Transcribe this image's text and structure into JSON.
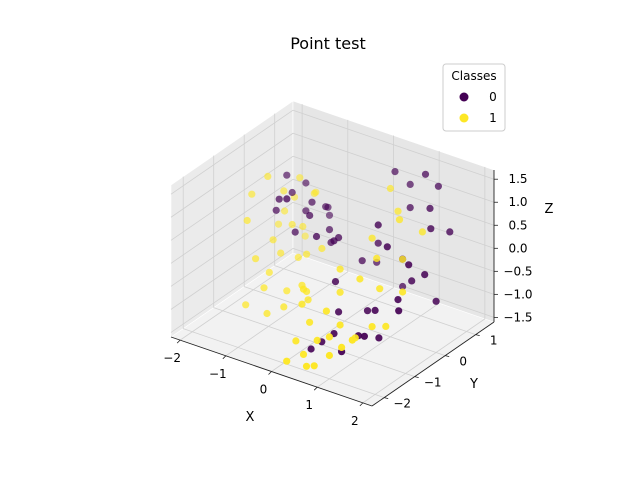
{
  "chart_data": {
    "type": "scatter",
    "projection": "3d",
    "title": "Point test",
    "xlabel": "X",
    "ylabel": "Y",
    "zlabel": "Z",
    "x_ticks": [
      -2,
      -1,
      0,
      1,
      2
    ],
    "y_ticks": [
      -2,
      -1,
      0,
      1
    ],
    "z_ticks": [
      -1.5,
      -1.0,
      -0.5,
      0.0,
      0.5,
      1.0,
      1.5
    ],
    "xlim": [
      -2.2,
      2.2
    ],
    "ylim": [
      -2.4,
      1.6
    ],
    "zlim": [
      -1.6,
      1.7
    ],
    "grid": true,
    "legend": {
      "title": "Classes",
      "placement": "top-right",
      "entries": [
        {
          "label": "0",
          "color": "#440154"
        },
        {
          "label": "1",
          "color": "#fde725"
        }
      ]
    },
    "series": [
      {
        "name": "0",
        "color": "#440154",
        "x": [
          -1.3,
          -1.15,
          -1.05,
          -0.95,
          -0.85,
          -0.75,
          -1.4,
          -1.25,
          -1.1,
          -0.9,
          -0.7,
          -0.6,
          -1.0,
          -0.8,
          -0.5,
          -0.35,
          -0.2,
          0.3,
          0.5,
          0.7,
          0.9,
          1.05,
          1.2,
          1.35,
          1.5,
          0.4,
          0.6,
          0.8,
          1.0,
          1.2,
          1.4,
          0.2,
          0.1,
          0.4,
          0.7,
          1.0,
          1.3,
          1.55,
          0.6,
          0.9,
          1.15,
          0.05,
          0.3,
          1.6,
          -0.1,
          0.2,
          0.5,
          0.8,
          1.1,
          1.45
        ],
        "y": [
          -0.3,
          0.0,
          0.3,
          -0.2,
          0.2,
          0.5,
          0.2,
          0.6,
          -0.5,
          0.8,
          -0.1,
          0.4,
          1.0,
          -0.7,
          0.3,
          -0.4,
          0.1,
          1.2,
          1.4,
          1.1,
          1.3,
          1.5,
          1.0,
          0.8,
          1.2,
          0.5,
          0.2,
          0.7,
          -0.1,
          0.4,
          0.0,
          -0.6,
          0.9,
          -0.8,
          -0.3,
          -0.5,
          -0.2,
          0.3,
          1.0,
          -0.9,
          -0.6,
          0.5,
          -1.2,
          0.6,
          -0.2,
          -1.4,
          -1.1,
          -1.3,
          -1.0,
          -0.4
        ],
        "z": [
          0.5,
          0.8,
          0.3,
          0.1,
          0.6,
          0.4,
          1.0,
          0.7,
          0.9,
          0.2,
          0.5,
          0.0,
          -0.1,
          1.1,
          -0.2,
          0.3,
          0.1,
          1.2,
          0.9,
          0.6,
          1.3,
          1.0,
          0.8,
          0.5,
          0.3,
          0.0,
          0.6,
          -0.3,
          0.4,
          -0.5,
          0.1,
          -0.4,
          -0.7,
          -0.9,
          -1.0,
          -0.8,
          -0.6,
          -0.2,
          -1.1,
          -1.2,
          -1.3,
          -0.5,
          -1.4,
          -0.9,
          0.2,
          -1.5,
          -1.2,
          -1.4,
          -1.1,
          -0.7
        ]
      },
      {
        "name": "1",
        "color": "#fde725",
        "x": [
          -1.9,
          -1.75,
          -1.6,
          -1.45,
          -1.3,
          -1.8,
          -1.65,
          -1.5,
          -1.35,
          -1.2,
          -1.7,
          -1.55,
          -1.4,
          -1.25,
          -1.85,
          -1.6,
          -1.45,
          -1.3,
          -1.15,
          -1.0,
          -0.9,
          -0.8,
          -0.6,
          -1.5,
          -1.1,
          -0.7,
          -0.4,
          0.2,
          0.5,
          0.8,
          1.1,
          0.4,
          0.7,
          1.0,
          0.6,
          0.3,
          0.9,
          -0.2,
          0.1,
          0.4,
          0.7,
          0.0,
          0.3,
          0.6,
          0.9,
          1.2,
          0.5,
          0.8,
          1.1,
          0.2,
          0.6,
          1.0,
          0.4,
          1.3,
          -0.5,
          -0.3,
          1.4,
          0.1
        ],
        "y": [
          -0.2,
          0.1,
          0.4,
          0.7,
          1.0,
          -0.5,
          0.5,
          -0.1,
          0.3,
          0.8,
          0.9,
          -0.6,
          0.0,
          0.5,
          0.6,
          1.1,
          -0.3,
          -0.7,
          0.2,
          -0.4,
          0.1,
          -0.8,
          -0.5,
          -1.0,
          -0.9,
          0.3,
          -0.6,
          1.2,
          1.0,
          0.6,
          0.9,
          0.3,
          0.0,
          0.4,
          -0.4,
          -0.6,
          -0.2,
          -1.1,
          -1.3,
          -1.5,
          -1.2,
          -1.6,
          -1.8,
          -1.4,
          -1.0,
          -0.9,
          -2.0,
          -1.7,
          -1.4,
          -2.2,
          -1.9,
          -1.6,
          -1.2,
          -0.6,
          -0.5,
          -0.9,
          -0.2,
          -0.3
        ],
        "z": [
          0.6,
          0.9,
          0.5,
          0.7,
          0.3,
          0.2,
          0.0,
          -0.3,
          -0.1,
          0.4,
          0.1,
          -0.5,
          -0.6,
          -0.2,
          -0.4,
          -0.8,
          -0.9,
          -1.0,
          -0.7,
          -1.1,
          -0.5,
          -1.2,
          -0.8,
          -1.3,
          -1.4,
          -0.4,
          -1.0,
          0.8,
          0.5,
          0.6,
          0.3,
          0.2,
          0.0,
          -0.1,
          -0.3,
          -0.6,
          -0.5,
          -0.8,
          -1.0,
          -1.2,
          -0.9,
          -1.3,
          -1.4,
          -1.1,
          -1.2,
          -0.9,
          -1.5,
          -1.3,
          -1.0,
          -1.4,
          -1.5,
          -1.1,
          -0.7,
          -1.0,
          -0.9,
          -0.6,
          -0.4,
          -0.3
        ]
      }
    ]
  }
}
